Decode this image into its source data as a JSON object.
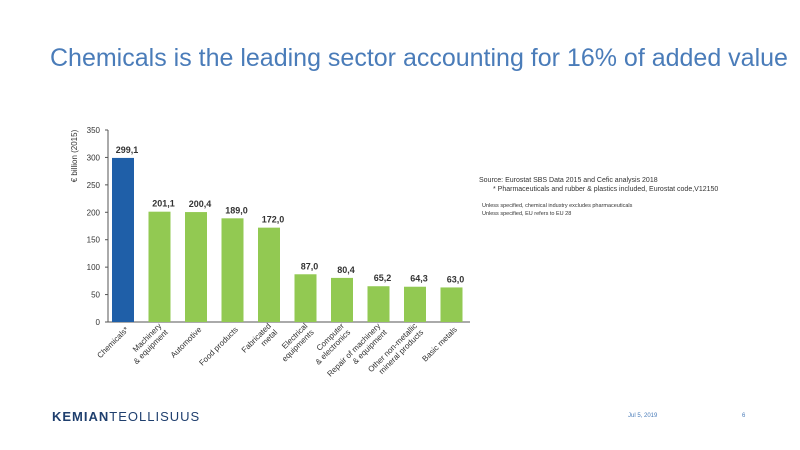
{
  "slide": {
    "title": "Chemicals is the leading sector accounting for 16% of added value",
    "source_line1": "Source: Eurostat SBS Data 2015 and Cefic analysis 2018",
    "source_line2": "* Pharmaceuticals and rubber & plastics included, Eurostat code,V12150",
    "note_line1": "Unless specified, chemical industry excludes pharmaceuticals",
    "note_line2": "Unless specified, EU refers to EU 28",
    "brand_bold": "KEMIAN",
    "brand_regular": "TEOLLISUUS",
    "date": "Jul 5, 2019",
    "page_number": "6"
  },
  "colors": {
    "title": "#4a7cb9",
    "highlight_bar": "#1f5fa8",
    "bar": "#92c952",
    "brand": "#1f3f6e"
  },
  "chart_data": {
    "type": "bar",
    "ylabel": "€ billion (2015)",
    "xlabel": "",
    "ylim": [
      0,
      350
    ],
    "yticks": [
      0,
      50,
      100,
      150,
      200,
      250,
      300,
      350
    ],
    "categories": [
      [
        "Chemicals*"
      ],
      [
        "Machinery",
        "& equipment"
      ],
      [
        "Automotive"
      ],
      [
        "Food products"
      ],
      [
        "Fabricated",
        "metal"
      ],
      [
        "Electrical",
        "equipments"
      ],
      [
        "Computer",
        "& electronics"
      ],
      [
        "Repair of machinery",
        "& equipment"
      ],
      [
        "Other non-metallic",
        "mineral products"
      ],
      [
        "Basic metals"
      ]
    ],
    "values": [
      299.1,
      201.1,
      200.4,
      189.0,
      172.0,
      87.0,
      80.4,
      65.2,
      64.3,
      63.0
    ],
    "value_labels": [
      "299,1",
      "201,1",
      "200,4",
      "189,0",
      "172,0",
      "87,0",
      "80,4",
      "65,2",
      "64,3",
      "63,0"
    ],
    "highlight_index": 0,
    "grid": false
  }
}
